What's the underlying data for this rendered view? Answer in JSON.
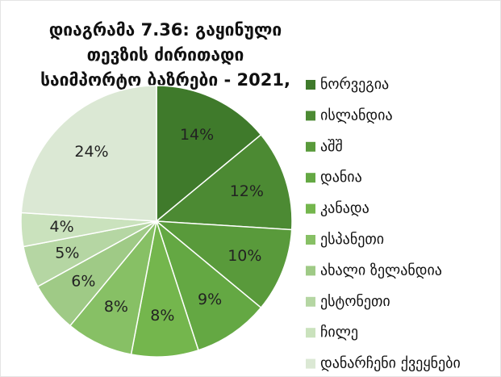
{
  "chart_data": {
    "type": "pie",
    "title": "დიაგრამა 7.36: გაყინული თევზის ძირითადი საიმპორტო ბაზრები - 2021, %",
    "categories": [
      "ნორვეგია",
      "ისლანდია",
      "აშშ",
      "დანია",
      "კანადა",
      "ესპანეთი",
      "ახალი ზელანდია",
      "ესტონეთი",
      "ჩილე",
      "დანარჩენი ქვეყნები"
    ],
    "values": [
      14,
      12,
      10,
      9,
      8,
      8,
      6,
      5,
      4,
      24
    ],
    "value_labels": [
      "14%",
      "12%",
      "10%",
      "9%",
      "8%",
      "8%",
      "6%",
      "5%",
      "4%",
      "24%"
    ],
    "colors": [
      "#3f7a2b",
      "#4c8a33",
      "#599a3b",
      "#64a843",
      "#74b64d",
      "#87c065",
      "#9fca86",
      "#b5d6a3",
      "#cae2bd",
      "#dbe8d4"
    ],
    "legend": "right"
  }
}
